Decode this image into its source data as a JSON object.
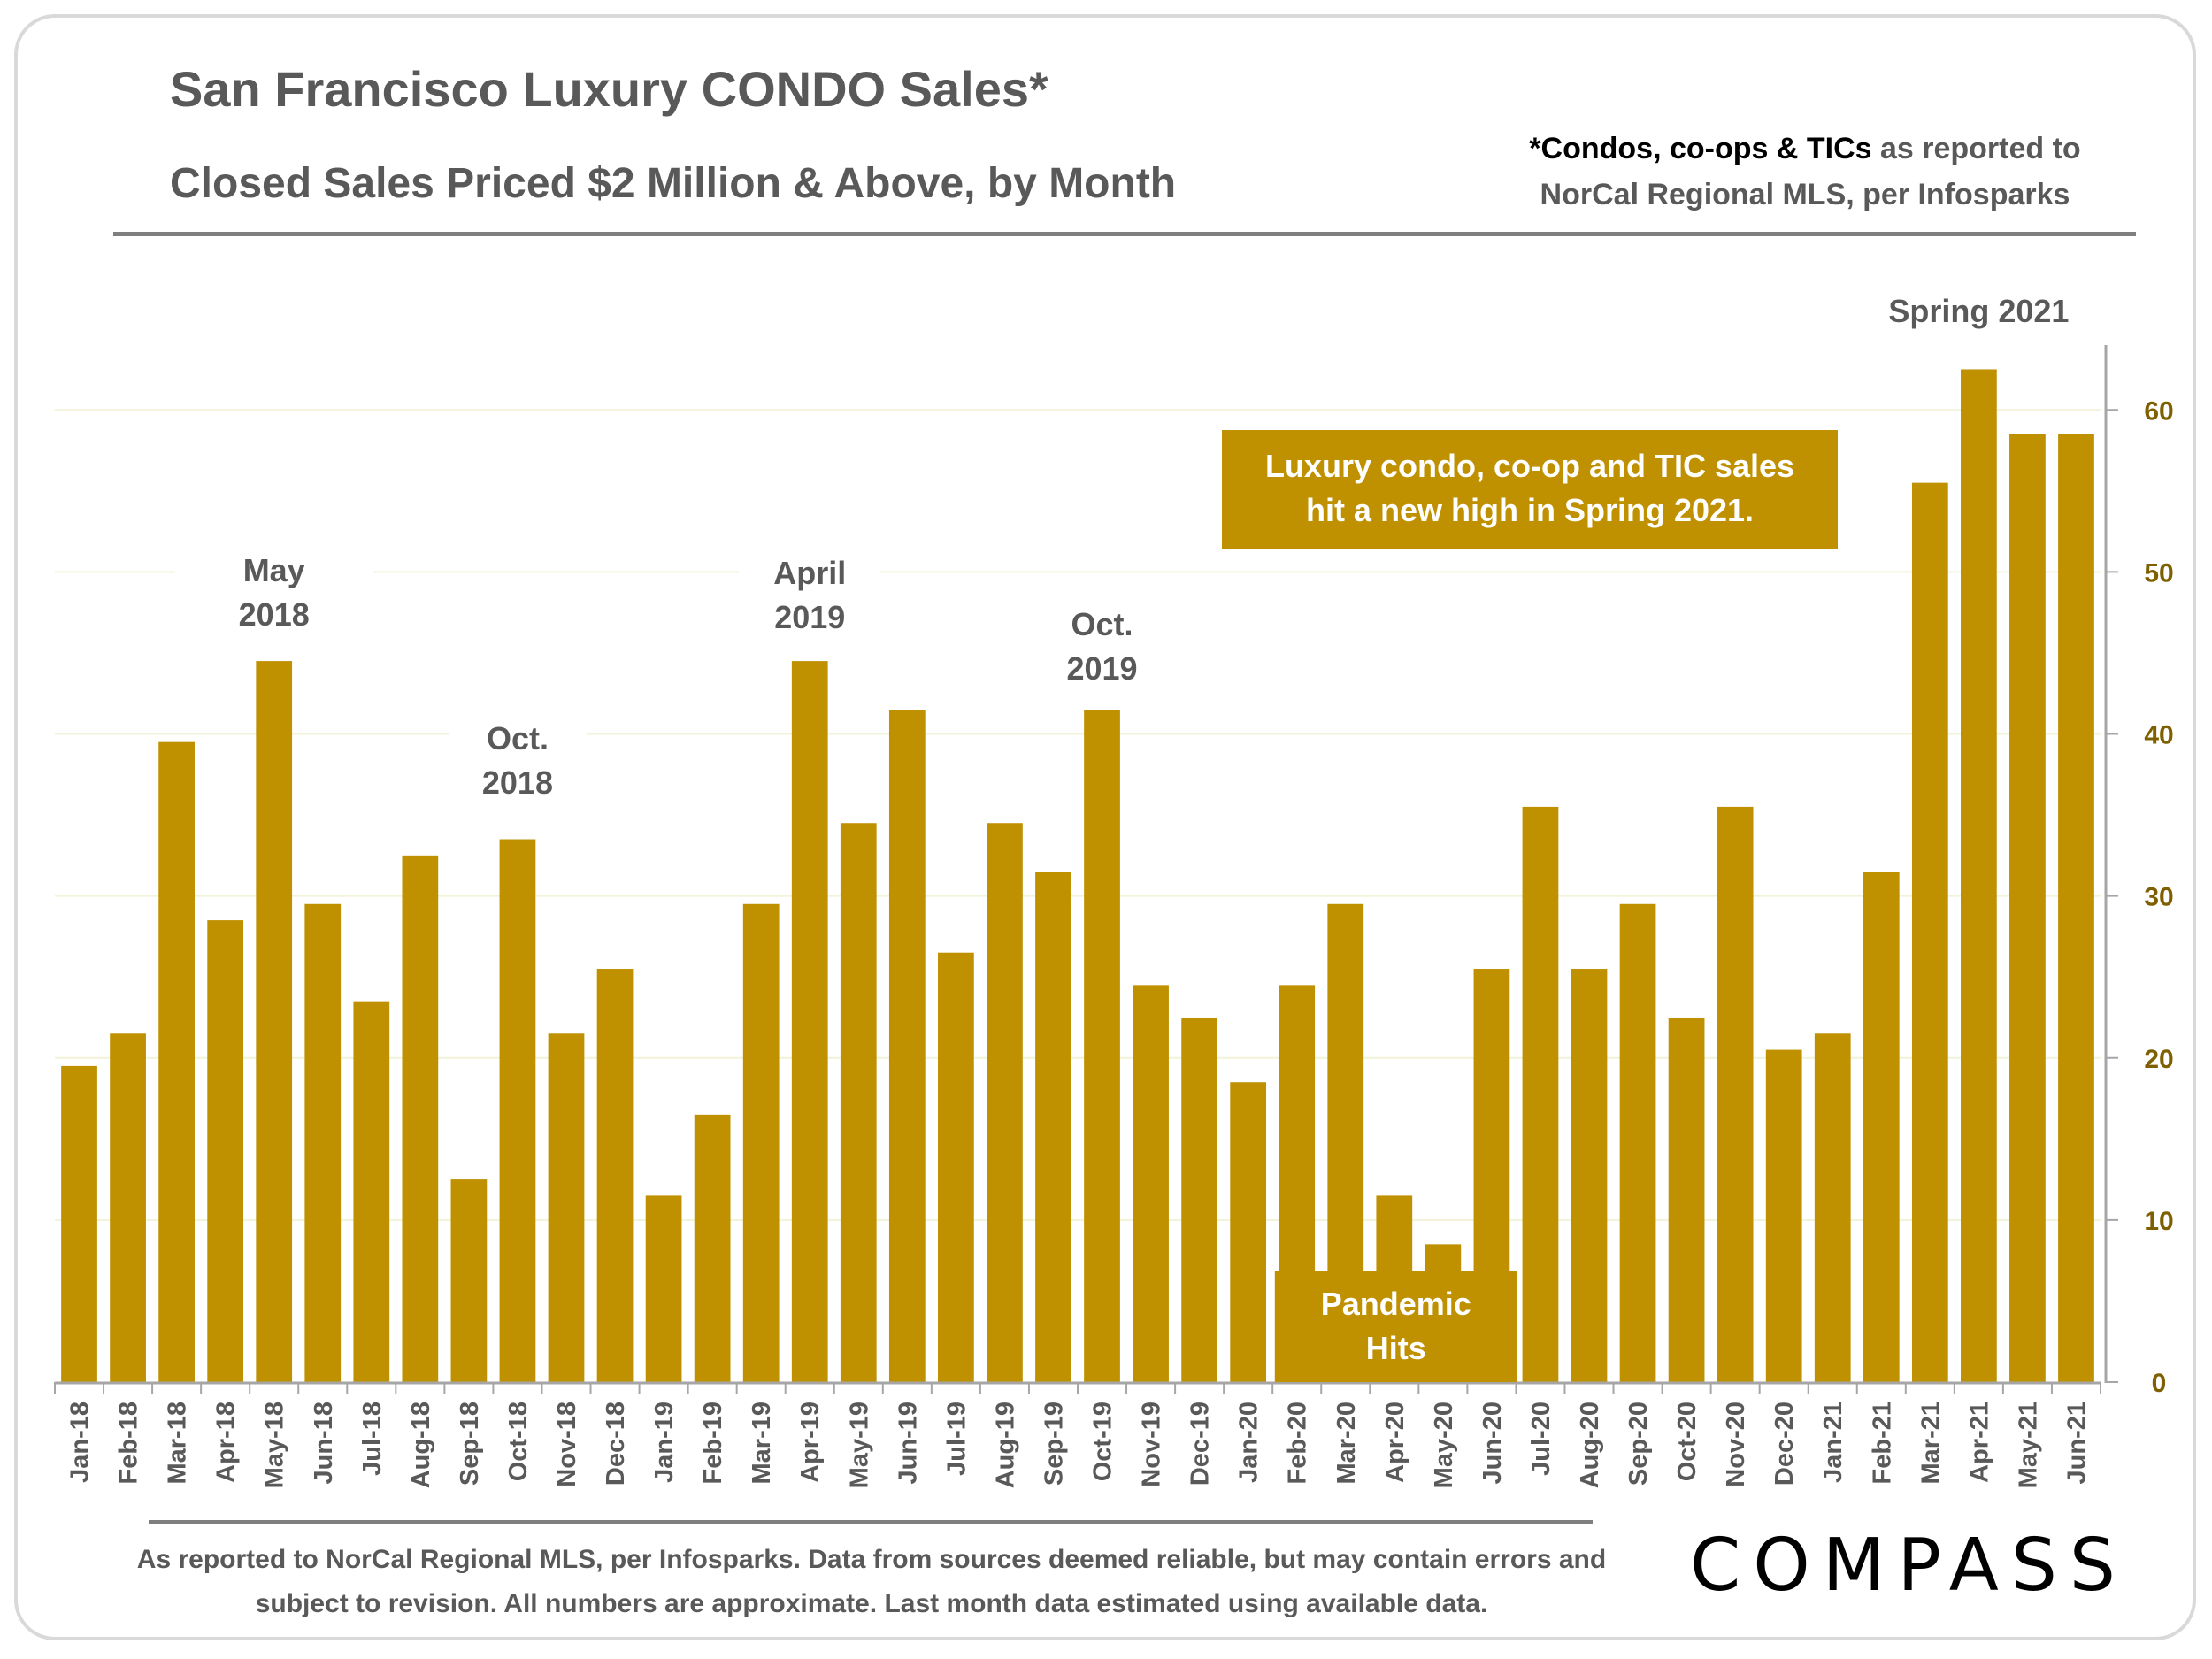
{
  "header": {
    "title": "San Francisco Luxury CONDO Sales*",
    "subtitle": "Closed Sales Priced $2 Million & Above, by Month",
    "note_emphasis": "*Condos, co-ops & TICs",
    "note_rest": " as reported to NorCal Regional MLS, per Infosparks"
  },
  "footer": {
    "disclaimer": "As reported to NorCal Regional MLS, per Infosparks. Data from sources deemed reliable, but may contain errors and subject to revision. All numbers are approximate. Last month data estimated using available data.",
    "logo": "COMPASS"
  },
  "colors": {
    "bar": "#bf9000",
    "text": "#595959",
    "axis_tick": "#7f6000",
    "grid": "#f2f2d9"
  },
  "chart_data": {
    "type": "bar",
    "categories": [
      "Jan-18",
      "Feb-18",
      "Mar-18",
      "Apr-18",
      "May-18",
      "Jun-18",
      "Jul-18",
      "Aug-18",
      "Sep-18",
      "Oct-18",
      "Nov-18",
      "Dec-18",
      "Jan-19",
      "Feb-19",
      "Mar-19",
      "Apr-19",
      "May-19",
      "Jun-19",
      "Jul-19",
      "Aug-19",
      "Sep-19",
      "Oct-19",
      "Nov-19",
      "Dec-19",
      "Jan-20",
      "Feb-20",
      "Mar-20",
      "Apr-20",
      "May-20",
      "Jun-20",
      "Jul-20",
      "Aug-20",
      "Sep-20",
      "Oct-20",
      "Nov-20",
      "Dec-20",
      "Jan-21",
      "Feb-21",
      "Mar-21",
      "Apr-21",
      "May-21",
      "Jun-21"
    ],
    "values": [
      19.5,
      21.5,
      39.5,
      28.5,
      44.5,
      29.5,
      23.5,
      32.5,
      12.5,
      33.5,
      21.5,
      25.5,
      11.5,
      16.5,
      29.5,
      44.5,
      34.5,
      41.5,
      26.5,
      34.5,
      31.5,
      41.5,
      24.5,
      22.5,
      18.5,
      24.5,
      29.5,
      11.5,
      8.5,
      25.5,
      35.5,
      25.5,
      29.5,
      22.5,
      35.5,
      20.5,
      21.5,
      31.5,
      55.5,
      62.5,
      58.5,
      58.5
    ],
    "yticks": [
      0,
      10,
      20,
      30,
      40,
      50,
      60
    ],
    "ylim": [
      0,
      64
    ],
    "y_axis_side": "right",
    "grid": true,
    "annotations": [
      {
        "text": "May\n2018",
        "category": "May-18"
      },
      {
        "text": "Oct.\n2018",
        "category": "Oct-18"
      },
      {
        "text": "April\n2019",
        "category": "Apr-19"
      },
      {
        "text": "Oct.\n2019",
        "category": "Oct-19"
      },
      {
        "text": "Spring 2021",
        "category": "Apr-21"
      },
      {
        "text": "Pandemic\nHits",
        "category": "Apr-20",
        "boxed": true
      },
      {
        "text": "Luxury condo, co-op and TIC sales\nhit a new high in Spring 2021.",
        "category": "Aug-20",
        "boxed": true
      }
    ]
  }
}
